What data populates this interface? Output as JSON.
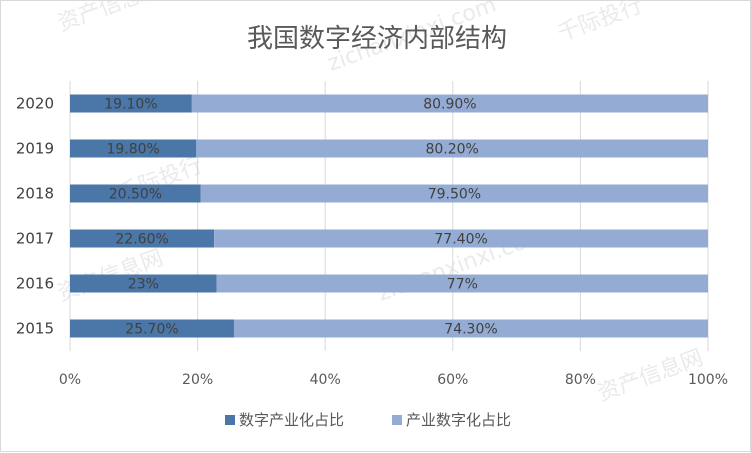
{
  "chart_data": {
    "type": "bar",
    "orientation": "horizontal",
    "stacked": true,
    "title": "我国数字经济内部结构",
    "categories": [
      "2020",
      "2019",
      "2018",
      "2017",
      "2016",
      "2015"
    ],
    "series": [
      {
        "name": "数字产业化占比",
        "values": [
          19.1,
          19.8,
          20.5,
          22.6,
          23,
          25.7
        ],
        "labels": [
          "19.10%",
          "19.80%",
          "20.50%",
          "22.60%",
          "23%",
          "25.70%"
        ],
        "color": "#4a76a8"
      },
      {
        "name": "产业数字化占比",
        "values": [
          80.9,
          80.2,
          79.5,
          77.4,
          77,
          74.3
        ],
        "labels": [
          "80.90%",
          "80.20%",
          "79.50%",
          "77.40%",
          "77%",
          "74.30%"
        ],
        "color": "#94acd4"
      }
    ],
    "x_ticks": [
      "0%",
      "20%",
      "40%",
      "60%",
      "80%",
      "100%"
    ],
    "xlim": [
      0,
      100
    ],
    "gridlines": true,
    "legend_position": "bottom"
  },
  "watermark": {
    "lines": [
      "资产信息网",
      "zichanxinxi.com",
      "千际投行"
    ]
  }
}
